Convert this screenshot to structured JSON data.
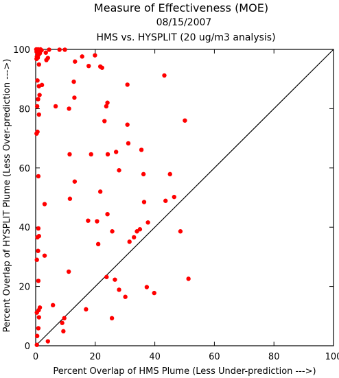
{
  "chart_data": {
    "type": "scatter",
    "title": "Measure of Effectiveness (MOE)",
    "subtitle_date": "08/15/2007",
    "subtitle_analysis": "HMS vs. HYSPLIT  (20 ug/m3 analysis)",
    "xlabel": "Percent Overlap of HMS Plume (Less Under-prediction --->)",
    "ylabel": "Percent Overlap of HYSPLIT Plume (Less Over-prediction --->)",
    "xlim": [
      0,
      100
    ],
    "ylim": [
      0,
      100
    ],
    "xticks": [
      "0",
      "20",
      "40",
      "60",
      "80",
      "100"
    ],
    "yticks": [
      "0",
      "20",
      "40",
      "60",
      "80",
      "100"
    ],
    "reference_line": "diagonal y = x",
    "grid": false,
    "legend": "none",
    "marker_color": "#ff0000",
    "series": [
      {
        "points": [
          [
            0.2,
            100
          ],
          [
            0.5,
            99.6
          ],
          [
            0.8,
            100
          ],
          [
            1.2,
            99.8
          ],
          [
            1.6,
            100
          ],
          [
            2.0,
            99.7
          ],
          [
            0.3,
            99.2
          ],
          [
            0.6,
            98.8
          ],
          [
            1.0,
            98.2
          ],
          [
            1.4,
            98.7
          ],
          [
            0.4,
            97.6
          ],
          [
            0.7,
            97.2
          ],
          [
            0.3,
            96.8
          ],
          [
            3.4,
            98.9
          ],
          [
            4.1,
            97.1
          ],
          [
            3.6,
            96.4
          ],
          [
            4.5,
            99.9
          ],
          [
            8.0,
            99.9
          ],
          [
            9.8,
            99.9
          ],
          [
            15.6,
            97.6
          ],
          [
            19.9,
            98.0
          ],
          [
            17.8,
            94.4
          ],
          [
            13.2,
            95.9
          ],
          [
            21.7,
            94.2
          ],
          [
            22.3,
            93.8
          ],
          [
            43.2,
            91.2
          ],
          [
            1.1,
            94.9
          ],
          [
            0.6,
            89.5
          ],
          [
            1.1,
            87.6
          ],
          [
            2.1,
            88.0
          ],
          [
            12.8,
            89.1
          ],
          [
            30.8,
            88.1
          ],
          [
            1.3,
            84.6
          ],
          [
            0.8,
            83.2
          ],
          [
            0.5,
            80.8
          ],
          [
            1.1,
            78.0
          ],
          [
            6.7,
            80.8
          ],
          [
            11.2,
            80.0
          ],
          [
            13.0,
            83.7
          ],
          [
            24.1,
            82.0
          ],
          [
            23.7,
            80.8
          ],
          [
            23.1,
            75.8
          ],
          [
            30.8,
            74.6
          ],
          [
            50.1,
            76.0
          ],
          [
            0.6,
            72.2
          ],
          [
            0.3,
            71.6
          ],
          [
            31.1,
            68.3
          ],
          [
            27.0,
            65.4
          ],
          [
            35.5,
            66.1
          ],
          [
            11.4,
            64.6
          ],
          [
            18.6,
            64.6
          ],
          [
            24.2,
            64.6
          ],
          [
            28.0,
            59.2
          ],
          [
            36.2,
            57.9
          ],
          [
            45.1,
            57.9
          ],
          [
            13.1,
            55.4
          ],
          [
            0.9,
            57.2
          ],
          [
            3.0,
            47.8
          ],
          [
            11.5,
            49.6
          ],
          [
            21.7,
            52.0
          ],
          [
            36.4,
            48.5
          ],
          [
            43.6,
            48.9
          ],
          [
            46.5,
            50.2
          ],
          [
            17.6,
            42.2
          ],
          [
            20.6,
            42.0
          ],
          [
            24.1,
            44.4
          ],
          [
            37.7,
            41.6
          ],
          [
            0.9,
            39.6
          ],
          [
            0.6,
            36.6
          ],
          [
            1.1,
            37.0
          ],
          [
            25.7,
            38.6
          ],
          [
            34.0,
            38.6
          ],
          [
            35.0,
            39.3
          ],
          [
            48.6,
            38.6
          ],
          [
            21.0,
            34.3
          ],
          [
            31.5,
            35.1
          ],
          [
            33.0,
            36.6
          ],
          [
            0.8,
            32.0
          ],
          [
            0.4,
            29.0
          ],
          [
            3.0,
            30.4
          ],
          [
            0.9,
            21.9
          ],
          [
            11.1,
            25.0
          ],
          [
            23.8,
            23.2
          ],
          [
            26.6,
            22.3
          ],
          [
            37.3,
            19.8
          ],
          [
            39.8,
            17.8
          ],
          [
            51.3,
            22.6
          ],
          [
            28.0,
            18.9
          ],
          [
            30.1,
            16.5
          ],
          [
            0.4,
            11.2
          ],
          [
            1.0,
            12.0
          ],
          [
            1.4,
            12.9
          ],
          [
            1.1,
            9.6
          ],
          [
            5.8,
            13.7
          ],
          [
            9.6,
            9.3
          ],
          [
            8.9,
            7.7
          ],
          [
            16.9,
            12.3
          ],
          [
            25.6,
            9.3
          ],
          [
            0.9,
            5.9
          ],
          [
            9.3,
            4.9
          ],
          [
            0.5,
            3.3
          ],
          [
            0.4,
            0.3
          ],
          [
            4.1,
            1.5
          ]
        ]
      }
    ]
  }
}
